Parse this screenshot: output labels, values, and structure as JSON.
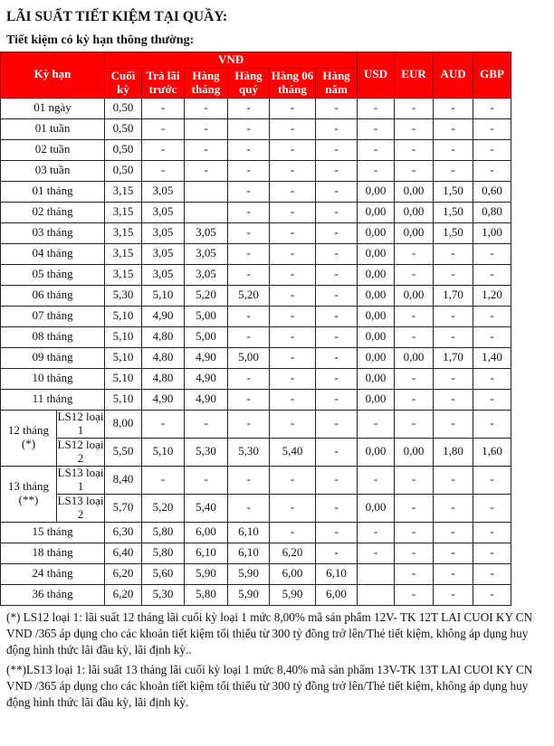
{
  "title": "LÃI SUẤT TIẾT KIỆM TẠI QUẦY:",
  "subtitle": "Tiết kiệm có kỳ hạn thông thường:",
  "colors": {
    "header_bg": "#ff0000",
    "header_text": "#ffffff"
  },
  "table": {
    "term_header": "Kỳ hạn",
    "vnd_header": "VNĐ",
    "vnd_columns": [
      "Cuối kỳ",
      "Trả lãi trước",
      "Hàng tháng",
      "Hàng quý",
      "Hàng 06 tháng",
      "Hàng năm"
    ],
    "currency_columns": [
      "USD",
      "EUR",
      "AUD",
      "GBP"
    ],
    "rows": [
      {
        "term": "01 ngày",
        "values": [
          "0,50",
          "-",
          "-",
          "-",
          "-",
          "-",
          "-",
          "-",
          "-",
          "-"
        ]
      },
      {
        "term": "01 tuần",
        "values": [
          "0,50",
          "-",
          "-",
          "-",
          "-",
          "-",
          "-",
          "-",
          "-",
          "-"
        ]
      },
      {
        "term": "02 tuần",
        "values": [
          "0,50",
          "-",
          "-",
          "-",
          "-",
          "-",
          "-",
          "-",
          "-",
          "-"
        ]
      },
      {
        "term": "03 tuần",
        "values": [
          "0,50",
          "-",
          "-",
          "-",
          "-",
          "-",
          "-",
          "-",
          "-",
          "-"
        ]
      },
      {
        "term": "01 tháng",
        "values": [
          "3,15",
          "3,05",
          "",
          "-",
          "-",
          "-",
          "0,00",
          "0,00",
          "1,50",
          "0,60"
        ]
      },
      {
        "term": "02 tháng",
        "values": [
          "3,15",
          "3,05",
          "",
          "-",
          "-",
          "-",
          "0,00",
          "0,00",
          "1,50",
          "0,80"
        ]
      },
      {
        "term": "03 tháng",
        "values": [
          "3,15",
          "3,05",
          "3,05",
          "-",
          "-",
          "-",
          "0,00",
          "0,00",
          "1,50",
          "1,00"
        ]
      },
      {
        "term": "04 tháng",
        "values": [
          "3,15",
          "3,05",
          "3,05",
          "-",
          "-",
          "-",
          "0,00",
          "-",
          "-",
          "-"
        ]
      },
      {
        "term": "05 tháng",
        "values": [
          "3,15",
          "3,05",
          "3,05",
          "-",
          "-",
          "-",
          "0,00",
          "-",
          "-",
          "-"
        ]
      },
      {
        "term": "06 tháng",
        "values": [
          "5,30",
          "5,10",
          "5,20",
          "5,20",
          "-",
          "-",
          "0,00",
          "0,00",
          "1,70",
          "1,20"
        ]
      },
      {
        "term": "07 tháng",
        "values": [
          "5,10",
          "4,90",
          "5,00",
          "-",
          "-",
          "-",
          "0,00",
          "-",
          "-",
          "-"
        ]
      },
      {
        "term": "08 tháng",
        "values": [
          "5,10",
          "4,80",
          "5,00",
          "-",
          "-",
          "-",
          "0,00",
          "-",
          "-",
          "-"
        ]
      },
      {
        "term": "09 tháng",
        "values": [
          "5,10",
          "4,80",
          "4,90",
          "5,00",
          "-",
          "-",
          "0,00",
          "0,00",
          "1,70",
          "1,40"
        ]
      },
      {
        "term": "10 tháng",
        "values": [
          "5,10",
          "4,80",
          "4,90",
          "-",
          "-",
          "-",
          "0,00",
          "-",
          "-",
          "-"
        ]
      },
      {
        "term": "11 tháng",
        "values": [
          "5,10",
          "4,90",
          "4,90",
          "-",
          "-",
          "-",
          "0,00",
          "-",
          "-",
          "-"
        ]
      },
      {
        "term": "12 tháng\n(*)",
        "sub": "LS12 loại 1",
        "values": [
          "8,00",
          "-",
          "-",
          "-",
          "-",
          "-",
          "-",
          "-",
          "-",
          "-"
        ]
      },
      {
        "term": "12 tháng\n(*)",
        "sub": "LS12 loại 2",
        "values": [
          "5,50",
          "5,10",
          "5,30",
          "5,30",
          "5,40",
          "-",
          "0,00",
          "0,00",
          "1,80",
          "1,60"
        ]
      },
      {
        "term": "13 tháng\n(**)",
        "sub": "LS13 loại 1",
        "values": [
          "8,40",
          "-",
          "-",
          "-",
          "-",
          "-",
          "-",
          "-",
          "-",
          "-"
        ]
      },
      {
        "term": "13 tháng\n(**)",
        "sub": "LS13 loại 2",
        "values": [
          "5,70",
          "5,20",
          "5,40",
          "-",
          "-",
          "-",
          "0,00",
          "-",
          "-",
          "-"
        ]
      },
      {
        "term": "15 tháng",
        "values": [
          "6,30",
          "5,80",
          "6,00",
          "6,10",
          "-",
          "-",
          "-",
          "-",
          "-",
          "-"
        ]
      },
      {
        "term": "18 tháng",
        "values": [
          "6,40",
          "5,80",
          "6,10",
          "6,10",
          "6,20",
          "-",
          "-",
          "-",
          "-",
          "-"
        ]
      },
      {
        "term": "24 tháng",
        "values": [
          "6,20",
          "5,60",
          "5,90",
          "5,90",
          "6,00",
          "6,10",
          "",
          "-",
          "-",
          "-"
        ]
      },
      {
        "term": "36 tháng",
        "values": [
          "6,20",
          "5,30",
          "5,80",
          "5,90",
          "5,90",
          "6,00",
          "",
          "-",
          "-",
          "-"
        ]
      }
    ]
  },
  "notes": [
    "(*) LS12 loại 1: lãi suất 12 tháng lãi cuối kỳ loại 1 mức 8,00% mã sản phẩm 12V- TK 12T LAI CUOI KY CN VND /365 áp dụng cho các khoản tiết kiệm tối thiểu từ 300 tỷ đồng trở lên/Thẻ tiết kiệm, không áp dụng huy động hình thức lãi đầu kỳ, lãi định kỳ..",
    "(**)LS13 loại 1: lãi suất 13 tháng lãi cuối kỳ loại 1 mức 8,40% mã sản phẩm 13V-TK 13T LAI CUOI KY CN VND /365 áp dụng cho các khoản tiết kiệm tối thiểu từ 300 tỷ đồng trở lên/Thẻ tiết kiệm, không áp dụng huy động hình thức lãi  đầu kỳ, lãi định kỳ."
  ]
}
